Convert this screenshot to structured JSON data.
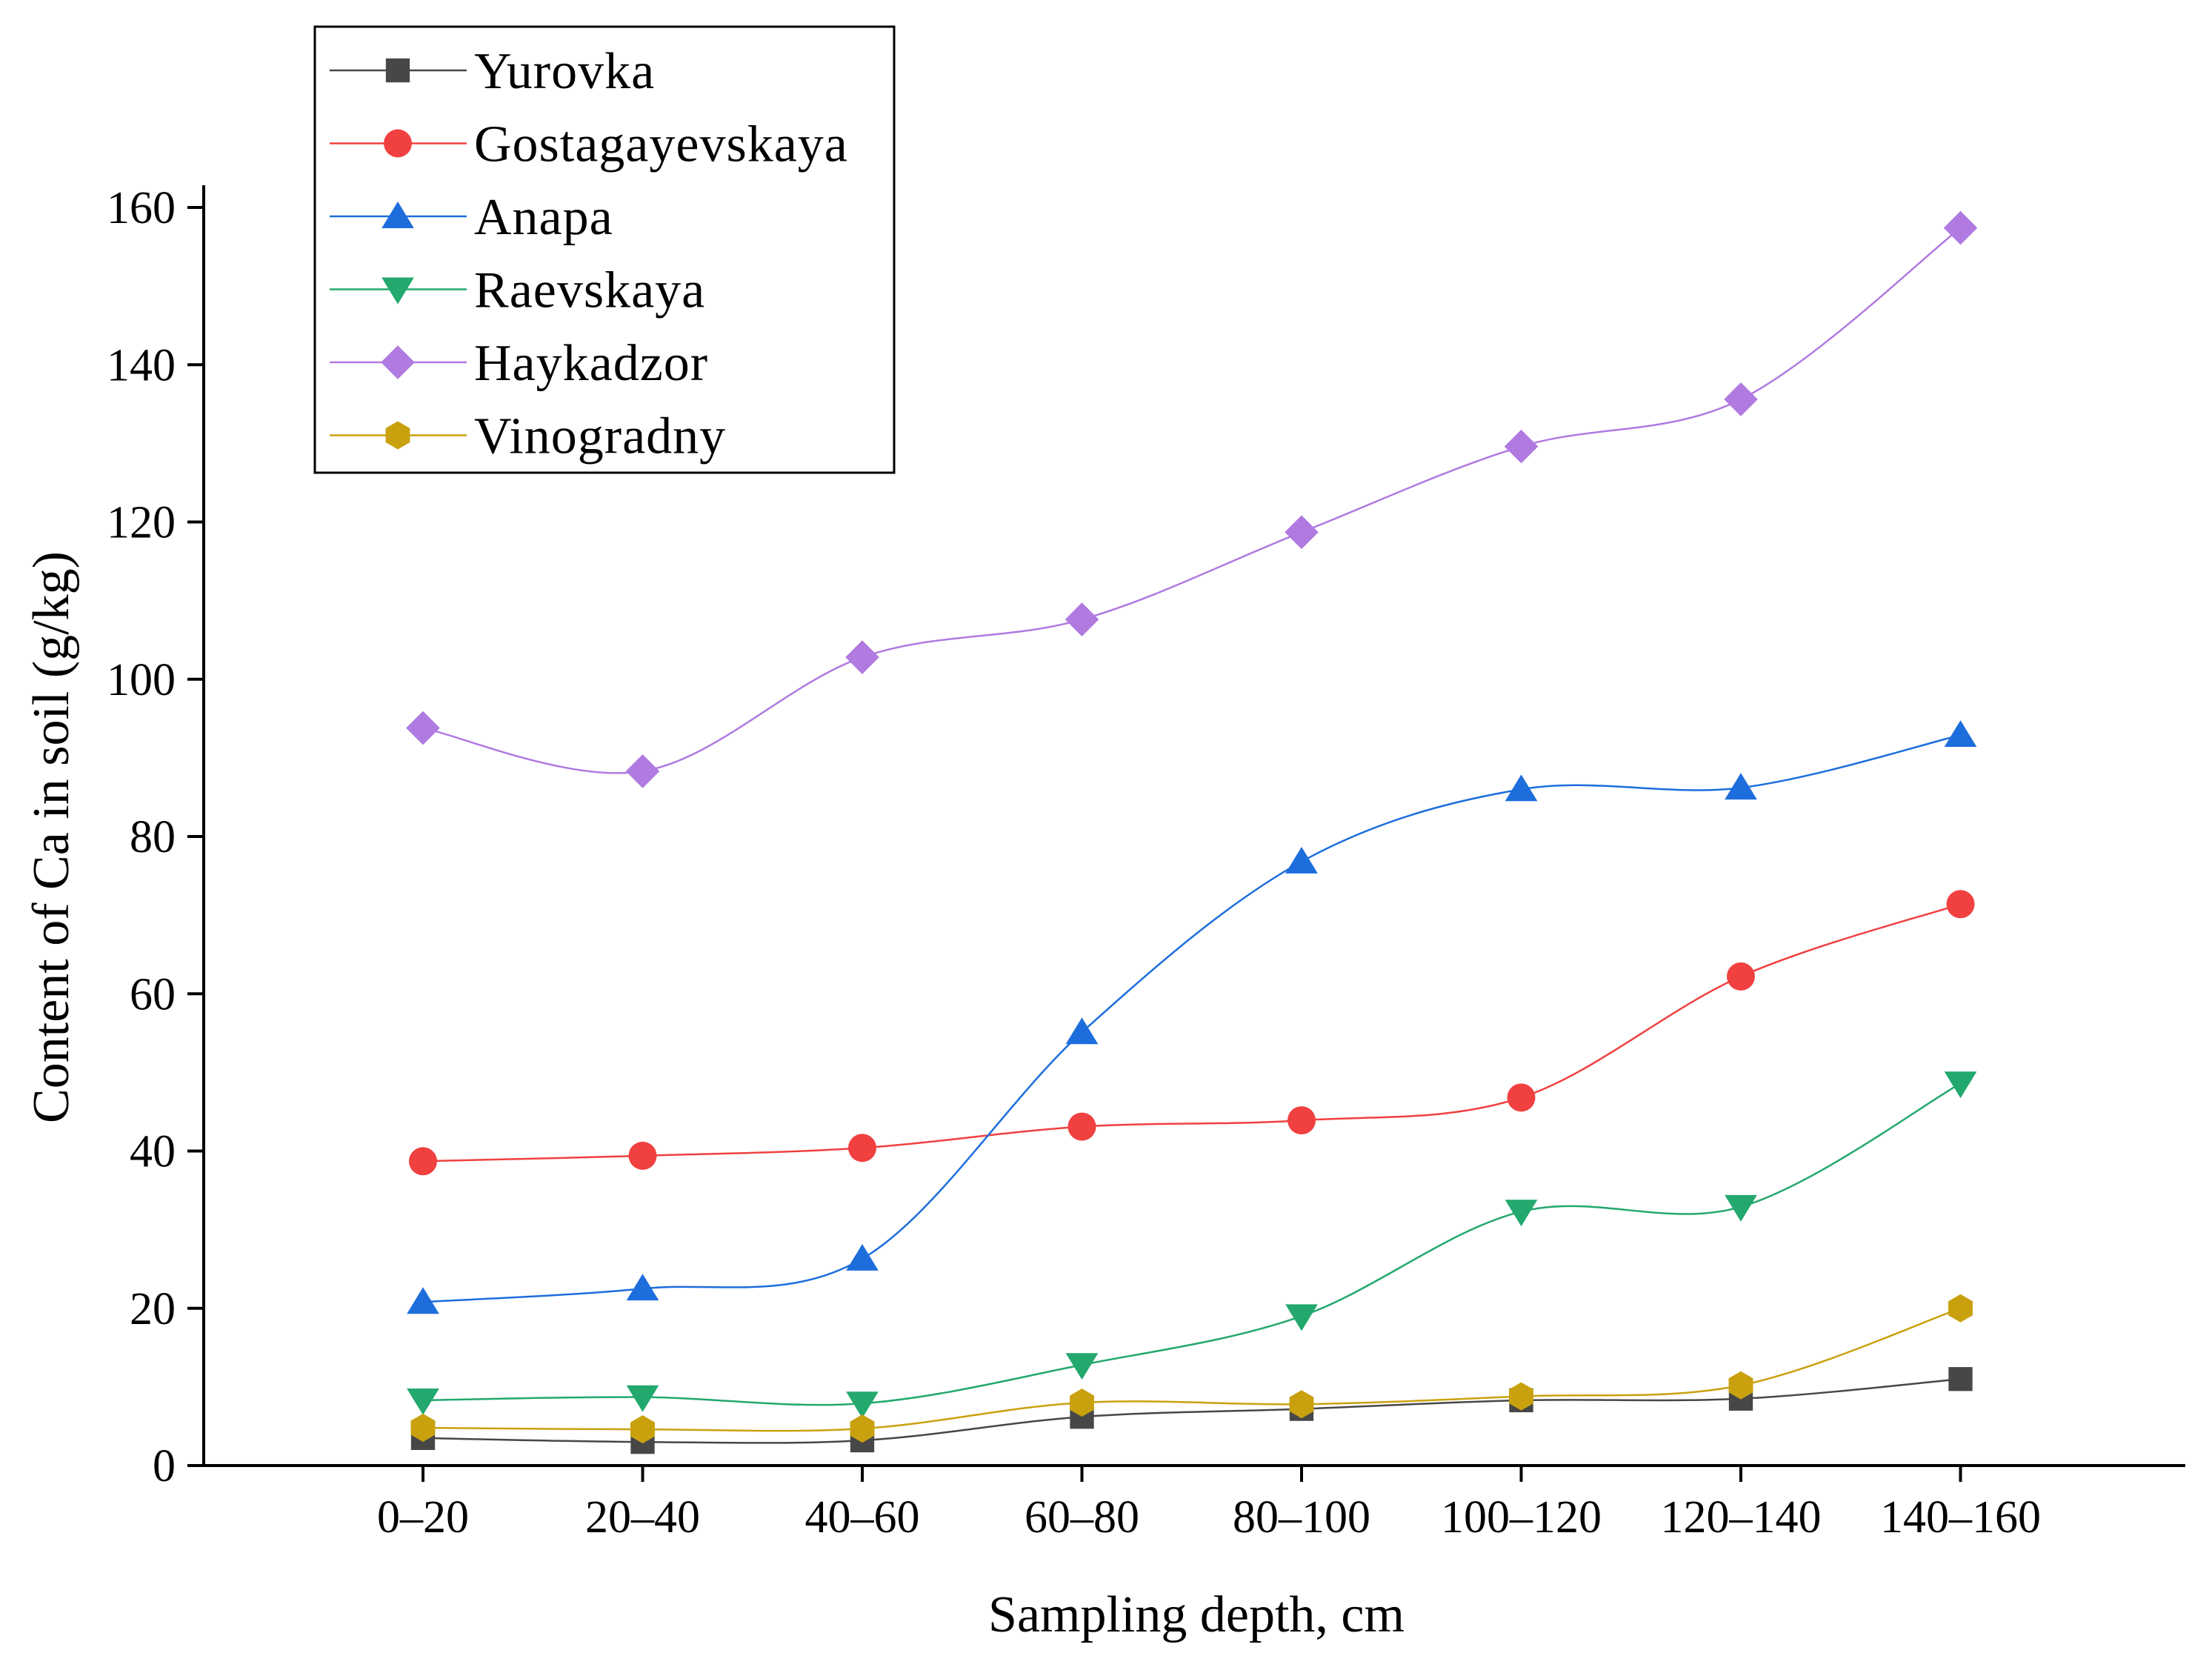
{
  "chart_data": {
    "type": "line",
    "title": "",
    "xlabel": "Sampling depth, cm",
    "ylabel": "Content of Ca in soil (g/kg)",
    "categories": [
      "0–20",
      "20–40",
      "40–60",
      "60–80",
      "80–100",
      "100–120",
      "120–140",
      "140–160"
    ],
    "ylim": [
      0,
      160
    ],
    "yticks": [
      0,
      20,
      40,
      60,
      80,
      100,
      120,
      140,
      160
    ],
    "grid": false,
    "smooth": true,
    "legend_position": "top-left",
    "series": [
      {
        "name": "Yurovka",
        "marker": "square",
        "color": "#474747",
        "values": [
          3.5,
          3.0,
          3.2,
          6.2,
          7.2,
          8.3,
          8.5,
          11.0
        ]
      },
      {
        "name": "Gostagayevskaya",
        "marker": "circle",
        "color": "#f04040",
        "values": [
          38.7,
          39.4,
          40.4,
          43.1,
          43.9,
          46.8,
          62.2,
          71.4
        ]
      },
      {
        "name": "Anapa",
        "marker": "triangle-up",
        "color": "#1d6edc",
        "values": [
          20.8,
          22.5,
          26.3,
          55.1,
          76.8,
          86.0,
          86.2,
          92.9
        ]
      },
      {
        "name": "Raevskaya",
        "marker": "triangle-down",
        "color": "#23a86d",
        "values": [
          8.3,
          8.7,
          7.9,
          12.8,
          19.0,
          32.3,
          32.9,
          48.6
        ]
      },
      {
        "name": "Haykadzor",
        "marker": "diamond",
        "color": "#b07ae0",
        "values": [
          93.8,
          88.3,
          102.8,
          107.6,
          118.7,
          129.6,
          135.6,
          157.4
        ]
      },
      {
        "name": "Vinogradny",
        "marker": "hexagon",
        "color": "#c9a10e",
        "values": [
          4.8,
          4.6,
          4.7,
          8.0,
          7.8,
          8.8,
          10.2,
          20.0
        ]
      }
    ]
  }
}
